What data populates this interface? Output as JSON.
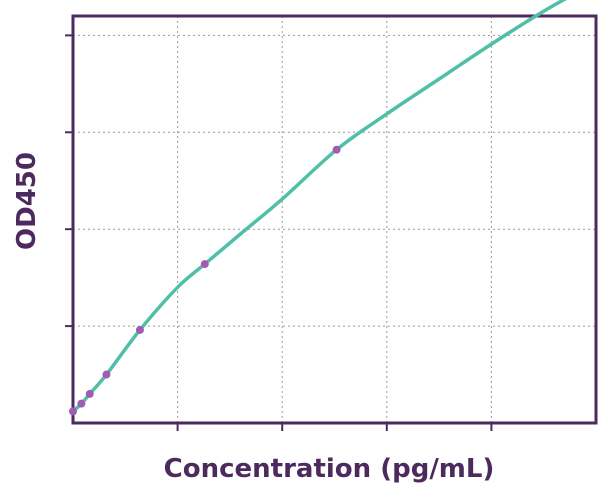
{
  "chart_data": {
    "type": "line",
    "title": "",
    "xlabel": "Concentration (pg/mL)",
    "ylabel": "OD450",
    "xlim": [
      0,
      5
    ],
    "ylim": [
      0,
      4.2
    ],
    "grid": true,
    "x_ticks": [
      1,
      2,
      3,
      4
    ],
    "y_ticks": [
      1,
      2,
      3,
      4
    ],
    "x_tick_labels_shown": false,
    "y_tick_labels_shown": false,
    "colors": {
      "curve": "#4fbfa8",
      "points": "#a15bb3",
      "frame": "#4d2a5e",
      "grid": "#9a9a9a",
      "label": "#4d2a5e"
    },
    "series": [
      {
        "type": "scatter",
        "x": [
          0.0,
          0.08,
          0.16,
          0.32,
          0.64,
          1.26,
          2.52
        ],
        "y": [
          0.12,
          0.2,
          0.3,
          0.5,
          0.96,
          1.64,
          2.82
        ]
      },
      {
        "type": "line",
        "x": [
          0.0,
          0.08,
          0.16,
          0.32,
          0.64,
          1.0,
          1.26,
          1.6,
          2.0,
          2.52,
          3.0,
          3.5,
          4.0,
          4.5,
          5.0
        ],
        "y": [
          0.12,
          0.2,
          0.3,
          0.5,
          0.96,
          1.4,
          1.64,
          1.95,
          2.31,
          2.82,
          3.19,
          3.55,
          3.91,
          4.25,
          4.55
        ]
      }
    ]
  }
}
